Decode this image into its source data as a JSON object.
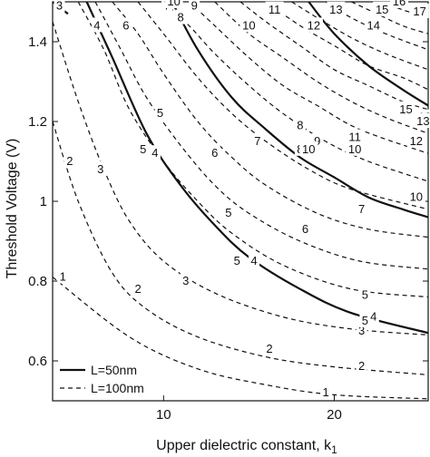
{
  "chart_data": {
    "type": "line",
    "title": "",
    "xlabel": "Upper dielectric constant, k",
    "xlabel_subscript": "1",
    "ylabel": "Threshold Voltage (V)",
    "xlim": [
      3.5,
      25.5
    ],
    "ylim": [
      0.5,
      1.5
    ],
    "xticks": [
      10,
      20
    ],
    "yticks": [
      0.6,
      0.8,
      1,
      1.2,
      1.4
    ],
    "legend": {
      "position": "bottom-left",
      "entries": [
        {
          "label": "L=50nm",
          "style": "solid"
        },
        {
          "label": "L=100nm",
          "style": "dashed"
        }
      ]
    },
    "series": [
      {
        "name": "L=100nm",
        "level": "1",
        "label_text": "1",
        "style": "dashed",
        "x": [
          3.5,
          8,
          12,
          16,
          20,
          25.5
        ],
        "y": [
          0.81,
          0.66,
          0.58,
          0.54,
          0.515,
          0.505
        ],
        "labels_at": [
          [
            4.1,
            0.81
          ],
          [
            19.5,
            0.52
          ]
        ]
      },
      {
        "name": "L=100nm",
        "level": "2",
        "label_text": "2",
        "style": "dashed",
        "x": [
          3.5,
          5,
          7,
          9,
          12,
          16,
          20,
          25.5
        ],
        "y": [
          1.2,
          1.0,
          0.82,
          0.73,
          0.66,
          0.61,
          0.585,
          0.565
        ],
        "labels_at": [
          [
            4.5,
            1.1
          ],
          [
            8.5,
            0.78
          ],
          [
            16.2,
            0.63
          ],
          [
            21.6,
            0.586
          ]
        ]
      },
      {
        "name": "L=100nm",
        "level": "3",
        "label_text": "3",
        "style": "dashed",
        "x": [
          3.5,
          5,
          6.5,
          8,
          10,
          13,
          17,
          21,
          25.5
        ],
        "y": [
          1.45,
          1.25,
          1.08,
          0.95,
          0.85,
          0.77,
          0.71,
          0.68,
          0.665
        ],
        "labels_at": [
          [
            6.3,
            1.08
          ],
          [
            11.3,
            0.8
          ],
          [
            21.6,
            0.675
          ]
        ]
      },
      {
        "name": "L=100nm",
        "level": "4",
        "label_text": "4",
        "style": "dashed",
        "x": [
          5,
          6.5,
          8,
          10,
          12,
          14,
          17,
          21,
          25.5
        ],
        "y": [
          1.5,
          1.38,
          1.23,
          1.1,
          1.0,
          0.92,
          0.84,
          0.78,
          0.76
        ],
        "labels_at": [
          [
            6.1,
            1.44
          ],
          [
            9.5,
            1.12
          ],
          [
            15.3,
            0.85
          ],
          [
            22.3,
            0.71
          ]
        ]
      },
      {
        "name": "L=100nm",
        "level": "5",
        "label_text": "5",
        "style": "dashed",
        "x": [
          6,
          7.5,
          9,
          11,
          13,
          15,
          18,
          21.5,
          25.5
        ],
        "y": [
          1.5,
          1.38,
          1.26,
          1.14,
          1.04,
          0.97,
          0.9,
          0.85,
          0.83
        ],
        "labels_at": [
          [
            9.8,
            1.22
          ],
          [
            13.8,
            0.97
          ],
          [
            21.8,
            0.765
          ]
        ]
      },
      {
        "name": "L=100nm",
        "level": "6",
        "label_text": "6",
        "style": "dashed",
        "x": [
          7,
          8.5,
          10,
          12,
          14,
          16,
          19,
          22,
          25.5
        ],
        "y": [
          1.5,
          1.42,
          1.32,
          1.2,
          1.11,
          1.04,
          0.97,
          0.93,
          0.91
        ],
        "labels_at": [
          [
            7.8,
            1.44
          ],
          [
            13,
            1.12
          ],
          [
            18.3,
            0.93
          ]
        ]
      },
      {
        "name": "L=100nm",
        "level": "7",
        "label_text": "7",
        "style": "dashed",
        "x": [
          8.5,
          10,
          12,
          14,
          16,
          18.5,
          21,
          25.5
        ],
        "y": [
          1.5,
          1.42,
          1.31,
          1.22,
          1.15,
          1.08,
          1.03,
          0.98
        ],
        "labels_at": [
          [
            10.2,
            1.49
          ],
          [
            15.5,
            1.15
          ],
          [
            21.6,
            0.98
          ]
        ]
      },
      {
        "name": "L=100nm",
        "level": "8",
        "label_text": "8",
        "style": "dashed",
        "x": [
          10,
          11.5,
          13,
          15,
          17,
          19.5,
          22,
          25.5
        ],
        "y": [
          1.5,
          1.44,
          1.37,
          1.29,
          1.22,
          1.15,
          1.1,
          1.05
        ],
        "labels_at": [
          [
            11,
            1.46
          ],
          [
            18,
            1.13
          ]
        ]
      },
      {
        "name": "L=100nm",
        "level": "9",
        "label_text": "9",
        "style": "dashed",
        "x": [
          11.5,
          13,
          15,
          17,
          19,
          21.5,
          25.5
        ],
        "y": [
          1.5,
          1.44,
          1.36,
          1.29,
          1.24,
          1.18,
          1.12
        ],
        "labels_at": [
          [
            11.8,
            1.49
          ],
          [
            19,
            1.15
          ]
        ]
      },
      {
        "name": "L=100nm",
        "level": "10",
        "label_text": "10",
        "style": "dashed",
        "x": [
          13,
          15,
          17,
          19,
          21,
          23,
          25.5
        ],
        "y": [
          1.5,
          1.42,
          1.36,
          1.3,
          1.25,
          1.21,
          1.17
        ],
        "labels_at": [
          [
            15,
            1.44
          ],
          [
            21.2,
            1.13
          ]
        ]
      },
      {
        "name": "L=100nm",
        "level": "11",
        "label_text": "11",
        "style": "dashed",
        "x": [
          14.5,
          16,
          18,
          20,
          22,
          24,
          25.5
        ],
        "y": [
          1.5,
          1.45,
          1.39,
          1.33,
          1.29,
          1.25,
          1.23
        ],
        "labels_at": [
          [
            16.5,
            1.48
          ],
          [
            21.2,
            1.16
          ]
        ]
      },
      {
        "name": "L=100nm",
        "level": "12",
        "label_text": "12",
        "style": "dashed",
        "x": [
          16,
          18,
          20,
          22,
          24,
          25.5
        ],
        "y": [
          1.5,
          1.44,
          1.39,
          1.34,
          1.31,
          1.28
        ],
        "labels_at": [
          [
            18.8,
            1.44
          ],
          [
            24.8,
            1.15
          ]
        ]
      },
      {
        "name": "L=100nm",
        "level": "13",
        "label_text": "13",
        "style": "dashed",
        "x": [
          17.5,
          19,
          21,
          23,
          25.5
        ],
        "y": [
          1.5,
          1.46,
          1.41,
          1.37,
          1.33
        ],
        "labels_at": [
          [
            20.1,
            1.48
          ],
          [
            25.3,
            1.21
          ]
        ]
      },
      {
        "name": "L=100nm",
        "level": "14",
        "label_text": "14",
        "style": "dashed",
        "x": [
          19.5,
          21,
          23,
          25.5
        ],
        "y": [
          1.5,
          1.46,
          1.42,
          1.38
        ],
        "labels_at": [
          [
            22.3,
            1.44
          ]
        ]
      },
      {
        "name": "L=100nm",
        "level": "15",
        "label_text": "15",
        "style": "dashed",
        "x": [
          21,
          22.5,
          24,
          25.5
        ],
        "y": [
          1.5,
          1.47,
          1.44,
          1.42
        ],
        "labels_at": [
          [
            22.8,
            1.48
          ]
        ]
      },
      {
        "name": "L=100nm",
        "level": "16",
        "label_text": "16",
        "style": "dashed",
        "x": [
          22.8,
          24,
          25.5
        ],
        "y": [
          1.5,
          1.48,
          1.46
        ],
        "labels_at": [
          [
            23.8,
            1.5
          ]
        ]
      },
      {
        "name": "L=50nm",
        "level": "5",
        "label_text": "5",
        "style": "solid",
        "x": [
          5.5,
          7,
          9,
          11,
          13,
          15,
          18,
          21,
          25.5
        ],
        "y": [
          1.5,
          1.36,
          1.17,
          1.04,
          0.94,
          0.86,
          0.78,
          0.72,
          0.67
        ],
        "labels_at": [
          [
            8.8,
            1.13
          ],
          [
            14.3,
            0.85
          ],
          [
            21.8,
            0.7
          ]
        ]
      },
      {
        "name": "L=50nm",
        "level": "10",
        "label_text": "10",
        "style": "solid",
        "x": [
          10.5,
          12,
          14,
          16,
          18,
          20,
          22,
          24,
          25.5
        ],
        "y": [
          1.5,
          1.38,
          1.26,
          1.18,
          1.11,
          1.06,
          1.01,
          0.98,
          0.96
        ],
        "labels_at": [
          [
            10.6,
            1.5
          ],
          [
            18.5,
            1.13
          ],
          [
            24.8,
            1.01
          ]
        ]
      },
      {
        "name": "L=50nm",
        "level": "15",
        "label_text": "15",
        "style": "solid",
        "x": [
          18.5,
          20,
          22,
          24,
          25.5
        ],
        "y": [
          1.5,
          1.42,
          1.34,
          1.28,
          1.24
        ],
        "labels_at": [
          [
            24.2,
            1.23
          ]
        ]
      },
      {
        "name": "L=50nm",
        "level": "3",
        "label_text": "3",
        "style": "solid",
        "x": [
          3.5,
          4.4
        ],
        "y": [
          1.5,
          1.47
        ],
        "labels_at": [
          [
            3.9,
            1.49
          ]
        ]
      }
    ],
    "extra_labels": [
      "17",
      "8",
      "13"
    ]
  }
}
